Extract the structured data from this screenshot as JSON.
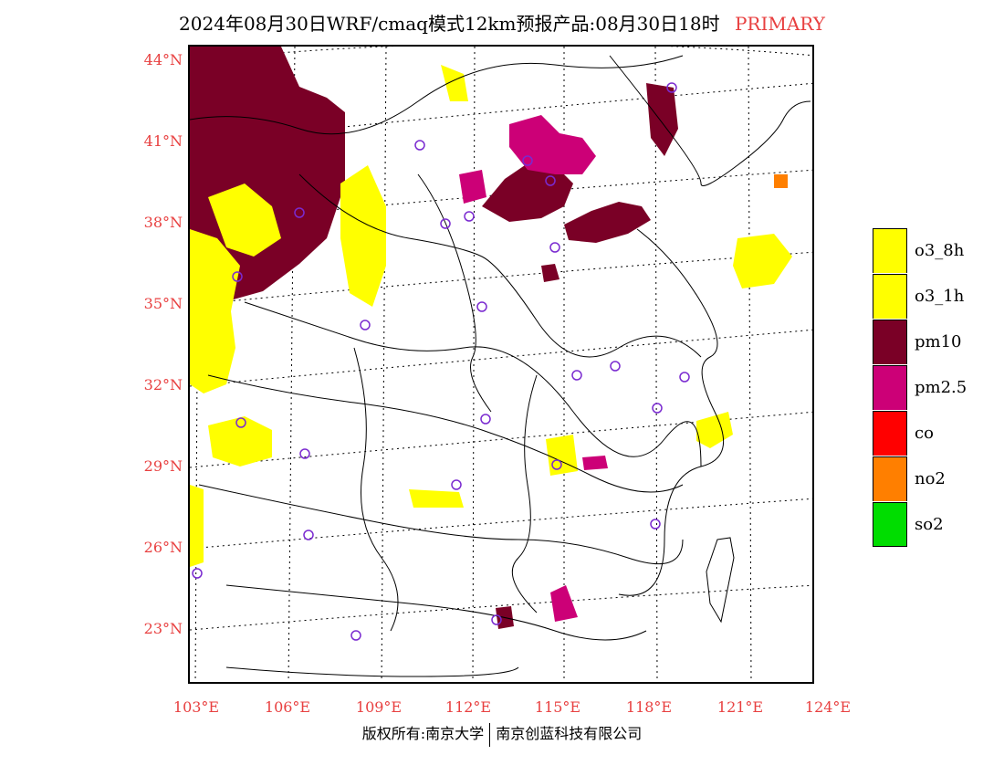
{
  "title": {
    "main": "2024年08月30日WRF/cmaq模式12km预报产品:08月30日18时",
    "flag": "PRIMARY"
  },
  "axes": {
    "lat_labels": [
      "44°N",
      "41°N",
      "38°N",
      "35°N",
      "32°N",
      "29°N",
      "26°N",
      "23°N"
    ],
    "lon_labels": [
      "103°E",
      "106°E",
      "109°E",
      "112°E",
      "115°E",
      "118°E",
      "121°E",
      "124°E"
    ]
  },
  "legend": {
    "items": [
      {
        "label": "o3_8h",
        "color": "#ffff00"
      },
      {
        "label": "o3_1h",
        "color": "#ffff00"
      },
      {
        "label": "pm10",
        "color": "#7a0026"
      },
      {
        "label": "pm2.5",
        "color": "#cc0077"
      },
      {
        "label": "co",
        "color": "#ff0000"
      },
      {
        "label": "no2",
        "color": "#ff7f00"
      },
      {
        "label": "so2",
        "color": "#00dd00"
      }
    ]
  },
  "footer": {
    "left": "版权所有:南京大学",
    "right": "南京创蓝科技有限公司"
  },
  "colors": {
    "axis_label": "#e84040",
    "station_marker": "#7a2ad0"
  }
}
